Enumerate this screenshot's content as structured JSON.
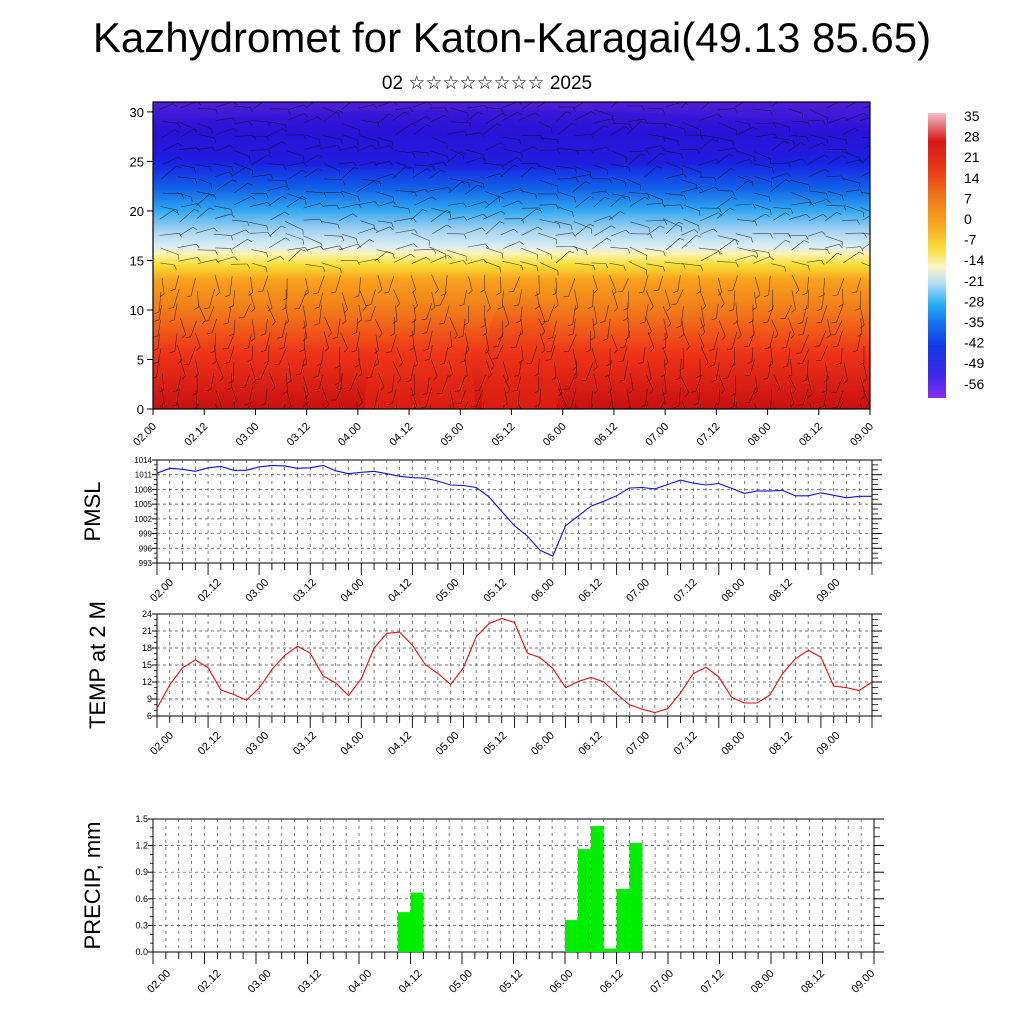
{
  "header": {
    "title": "Kazhydromet for Katon-Karagai(49.13 85.65)",
    "subtitle": "02 ☆☆☆☆☆☆☆☆ 2025"
  },
  "colors": {
    "pmsl_line": "#1010e0",
    "temp_line": "#e01010",
    "precip_bar": "#00ee00",
    "grid": "#333333"
  },
  "chart_data": [
    {
      "id": "cross-section",
      "type": "heatmap",
      "title": "",
      "ylabel": "",
      "ylim": [
        0,
        31
      ],
      "yticks": [
        0,
        5,
        10,
        15,
        20,
        25,
        30
      ],
      "xticks": [
        "02.00",
        "02.12",
        "03.00",
        "03.12",
        "04.00",
        "04.12",
        "05.00",
        "05.12",
        "06.00",
        "06.12",
        "07.00",
        "07.12",
        "08.00",
        "08.12",
        "09.00"
      ],
      "colorbar": {
        "labels": [
          "35",
          "28",
          "21",
          "14",
          "7",
          "0",
          "-7",
          "-14",
          "-21",
          "-28",
          "-35",
          "-42",
          "-49",
          "-56"
        ],
        "range": [
          -60,
          38
        ]
      },
      "overlay": "wind barbs"
    },
    {
      "id": "pmsl",
      "type": "line",
      "ylabel": "PMSL",
      "ylim": [
        993,
        1014
      ],
      "yticks": [
        993,
        996,
        999,
        1002,
        1005,
        1008,
        1011,
        1014
      ],
      "x_range": [
        0,
        168
      ],
      "xticks": [
        "02.00",
        "02.12",
        "03.00",
        "03.12",
        "04.00",
        "04.12",
        "05.00",
        "05.12",
        "06.00",
        "06.12",
        "07.00",
        "07.12",
        "08.00",
        "08.12",
        "09.00"
      ],
      "x": [
        0,
        3,
        6,
        9,
        12,
        15,
        18,
        21,
        24,
        27,
        30,
        33,
        36,
        39,
        42,
        45,
        48,
        51,
        54,
        57,
        60,
        63,
        66,
        69,
        72,
        75,
        78,
        81,
        84,
        87,
        90,
        93,
        96,
        99,
        102,
        105,
        108,
        111,
        114,
        117,
        120,
        123,
        126,
        129,
        132,
        135,
        138,
        141,
        144,
        147,
        150,
        153,
        156,
        159,
        162,
        165,
        168
      ],
      "values": [
        1011.3,
        1012.3,
        1012.1,
        1011.7,
        1012.4,
        1012.7,
        1011.9,
        1011.9,
        1012.6,
        1012.9,
        1012.8,
        1012.3,
        1012.4,
        1012.9,
        1011.8,
        1011.2,
        1011.5,
        1011.7,
        1011.2,
        1010.7,
        1010.4,
        1010.3,
        1009.7,
        1008.9,
        1008.8,
        1008.4,
        1006.5,
        1003.5,
        1000.6,
        998.5,
        995.6,
        994.4,
        1000.6,
        1002.6,
        1004.6,
        1005.6,
        1006.7,
        1008.3,
        1008.4,
        1008.1,
        1009.0,
        1009.9,
        1009.3,
        1008.9,
        1009.2,
        1008.2,
        1007.2,
        1007.7,
        1007.7,
        1007.8,
        1006.7,
        1006.7,
        1007.3,
        1006.8,
        1006.3,
        1006.6,
        1006.6
      ]
    },
    {
      "id": "temp",
      "type": "line",
      "ylabel": "TEMP at 2 M",
      "ylim": [
        6,
        24
      ],
      "yticks": [
        6,
        9,
        12,
        15,
        18,
        21,
        24
      ],
      "x_range": [
        0,
        168
      ],
      "xticks": [
        "02.00",
        "02.12",
        "03.00",
        "03.12",
        "04.00",
        "04.12",
        "05.00",
        "05.12",
        "06.00",
        "06.12",
        "07.00",
        "07.12",
        "08.00",
        "08.12",
        "09.00"
      ],
      "x": [
        0,
        3,
        6,
        9,
        12,
        15,
        18,
        21,
        24,
        27,
        30,
        33,
        36,
        39,
        42,
        45,
        48,
        51,
        54,
        57,
        60,
        63,
        66,
        69,
        72,
        75,
        78,
        81,
        84,
        87,
        90,
        93,
        96,
        99,
        102,
        105,
        108,
        111,
        114,
        117,
        120,
        123,
        126,
        129,
        132,
        135,
        138,
        141,
        144,
        147,
        150,
        153,
        156,
        159,
        162,
        165,
        168
      ],
      "values": [
        7.4,
        11.5,
        14.5,
        15.9,
        14.5,
        10.6,
        9.8,
        8.8,
        10.9,
        14.2,
        16.7,
        18.3,
        17.1,
        13.1,
        11.8,
        9.6,
        12.6,
        18.0,
        20.6,
        20.8,
        18.5,
        15.1,
        13.5,
        11.6,
        14.5,
        20.0,
        22.3,
        23.2,
        22.5,
        17.1,
        16.3,
        14.4,
        11.0,
        12.1,
        12.8,
        12.0,
        9.9,
        8.0,
        7.2,
        6.6,
        7.3,
        10.1,
        13.5,
        14.6,
        12.9,
        9.3,
        8.3,
        8.3,
        9.7,
        13.5,
        16.1,
        17.6,
        16.4,
        11.3,
        11.0,
        10.5,
        12.0
      ]
    },
    {
      "id": "precip",
      "type": "bar",
      "ylabel": "PRECIP, mm",
      "ylim": [
        0.0,
        1.5
      ],
      "yticks": [
        "0.0",
        "0.3",
        "0.6",
        "0.9",
        "1.2",
        "1.5"
      ],
      "x_range": [
        0,
        168
      ],
      "bar_width": 3,
      "xticks": [
        "02.00",
        "02.12",
        "03.00",
        "03.12",
        "04.00",
        "04.12",
        "05.00",
        "05.12",
        "06.00",
        "06.12",
        "07.00",
        "07.12",
        "08.00",
        "08.12",
        "09.00"
      ],
      "bars": [
        {
          "x": 57,
          "value": 0.45
        },
        {
          "x": 60,
          "value": 0.67
        },
        {
          "x": 96,
          "value": 0.36
        },
        {
          "x": 99,
          "value": 1.16
        },
        {
          "x": 102,
          "value": 1.42
        },
        {
          "x": 105,
          "value": 0.04
        },
        {
          "x": 108,
          "value": 0.71
        },
        {
          "x": 111,
          "value": 1.23
        }
      ]
    }
  ]
}
